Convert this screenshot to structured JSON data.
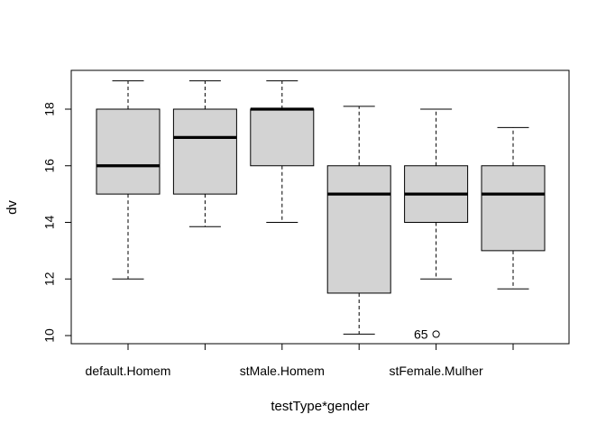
{
  "chart_data": {
    "type": "boxplot",
    "title": "",
    "xlabel": "testType*gender",
    "ylabel": "dv",
    "ylim": [
      9.7,
      19.4
    ],
    "yticks": [
      10,
      12,
      14,
      16,
      18
    ],
    "grid": false,
    "legend": "none",
    "box_fill": "#d3d3d3",
    "categories": [
      "default.Homem",
      "",
      "stMale.Homem",
      "",
      "stFemale.Mulher",
      ""
    ],
    "boxes": [
      {
        "whisker_low": 12.0,
        "q1": 15.0,
        "median": 16.0,
        "q3": 18.0,
        "whisker_high": 19.0
      },
      {
        "whisker_low": 13.85,
        "q1": 15.0,
        "median": 17.0,
        "q3": 18.0,
        "whisker_high": 19.0
      },
      {
        "whisker_low": 14.0,
        "q1": 16.0,
        "median": 18.0,
        "q3": 18.0,
        "whisker_high": 19.0
      },
      {
        "whisker_low": 10.05,
        "q1": 11.5,
        "median": 15.0,
        "q3": 16.0,
        "whisker_high": 18.1
      },
      {
        "whisker_low": 12.0,
        "q1": 14.0,
        "median": 15.0,
        "q3": 16.0,
        "whisker_high": 18.0
      },
      {
        "whisker_low": 11.65,
        "q1": 13.0,
        "median": 15.0,
        "q3": 16.0,
        "whisker_high": 17.35
      }
    ],
    "outliers": [
      {
        "group_index": 4,
        "value": 10.05,
        "label": "65"
      }
    ]
  }
}
